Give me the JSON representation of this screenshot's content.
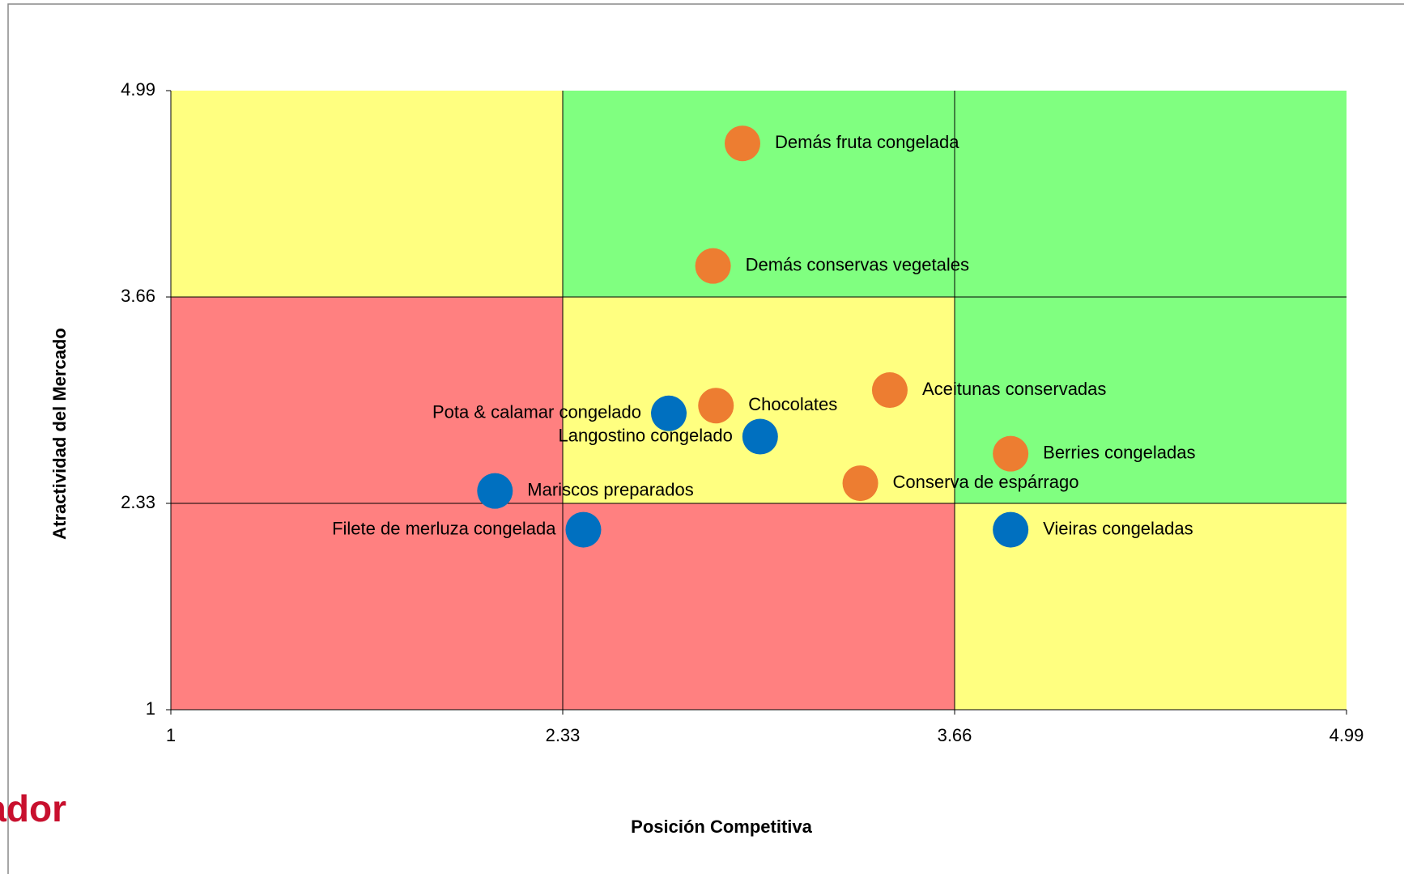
{
  "chart_data": {
    "type": "scatter",
    "xlabel": "Posición Competitiva",
    "ylabel": "Atractividad del Mercado",
    "logo_text": "ador",
    "xlim": [
      1,
      4.99
    ],
    "ylim": [
      1,
      4.99
    ],
    "xticks": [
      1,
      2.33,
      3.66,
      4.99
    ],
    "yticks": [
      1,
      2.33,
      3.66,
      4.99
    ],
    "zone_colors": [
      [
        "#ff8080",
        "#ff8080",
        "#ffff80"
      ],
      [
        "#ff8080",
        "#ffff80",
        "#80ff80"
      ],
      [
        "#ffff80",
        "#80ff80",
        "#80ff80"
      ]
    ],
    "points": [
      {
        "label": "Demás fruta congelada",
        "x": 2.94,
        "y": 4.65,
        "color": "#ed7d31",
        "label_side": "right"
      },
      {
        "label": "Demás conservas vegetales",
        "x": 2.84,
        "y": 3.86,
        "color": "#ed7d31",
        "label_side": "right"
      },
      {
        "label": "Aceitunas conservadas",
        "x": 3.44,
        "y": 3.06,
        "color": "#ed7d31",
        "label_side": "right"
      },
      {
        "label": "Chocolates",
        "x": 2.85,
        "y": 2.96,
        "color": "#ed7d31",
        "label_side": "right"
      },
      {
        "label": "Pota & calamar congelado",
        "x": 2.69,
        "y": 2.91,
        "color": "#0070c0",
        "label_side": "left"
      },
      {
        "label": "Langostino congelado",
        "x": 3.0,
        "y": 2.76,
        "color": "#0070c0",
        "label_side": "left"
      },
      {
        "label": "Berries congeladas",
        "x": 3.85,
        "y": 2.65,
        "color": "#ed7d31",
        "label_side": "right"
      },
      {
        "label": "Conserva de espárrago",
        "x": 3.34,
        "y": 2.46,
        "color": "#ed7d31",
        "label_side": "right"
      },
      {
        "label": "Mariscos preparados",
        "x": 2.1,
        "y": 2.41,
        "color": "#0070c0",
        "label_side": "right"
      },
      {
        "label": "Filete de merluza congelada",
        "x": 2.4,
        "y": 2.16,
        "color": "#0070c0",
        "label_side": "left"
      },
      {
        "label": "Vieiras congeladas",
        "x": 3.85,
        "y": 2.16,
        "color": "#0070c0",
        "label_side": "right"
      }
    ]
  }
}
